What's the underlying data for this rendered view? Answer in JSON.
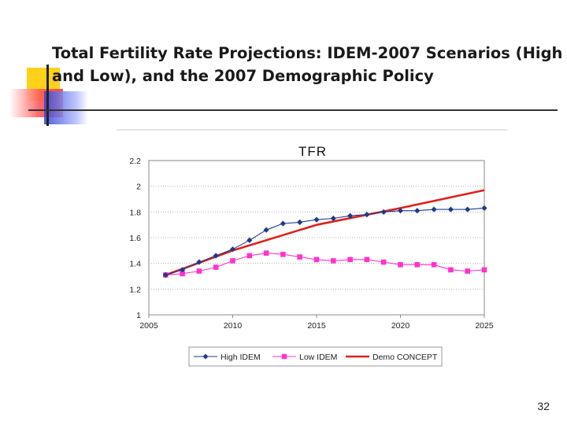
{
  "slide": {
    "title": "Total Fertility Rate Projections: IDEM-2007 Scenarios (High and Low), and the 2007 Demographic Policy",
    "page_number": "32"
  },
  "colors": {
    "high": "#1f3a8a",
    "low": "#ff33cc",
    "demo": "#e0201b",
    "deco_yellow": "#ffd21a",
    "deco_red": "#ff3b3b",
    "deco_blue": "#5560e0"
  },
  "chart_data": {
    "type": "line",
    "title": "TFR",
    "xlabel": "",
    "ylabel": "",
    "xlim": [
      2005,
      2025
    ],
    "ylim": [
      1,
      2.2
    ],
    "x_ticks": [
      "2005",
      "2010",
      "2015",
      "2020",
      "2025"
    ],
    "y_ticks": [
      "1",
      "1.2",
      "1.4",
      "1.6",
      "1.8",
      "2",
      "2.2"
    ],
    "grid": true,
    "legend_position": "bottom",
    "series": [
      {
        "name": "High IDEM",
        "marker": "diamond",
        "x": [
          2006,
          2007,
          2008,
          2009,
          2010,
          2011,
          2012,
          2013,
          2014,
          2015,
          2016,
          2017,
          2018,
          2019,
          2020,
          2021,
          2022,
          2023,
          2024,
          2025
        ],
        "values": [
          1.31,
          1.35,
          1.41,
          1.46,
          1.51,
          1.58,
          1.66,
          1.71,
          1.72,
          1.74,
          1.75,
          1.77,
          1.78,
          1.8,
          1.81,
          1.81,
          1.82,
          1.82,
          1.82,
          1.83
        ]
      },
      {
        "name": "Low IDEM",
        "marker": "square",
        "x": [
          2006,
          2007,
          2008,
          2009,
          2010,
          2011,
          2012,
          2013,
          2014,
          2015,
          2016,
          2017,
          2018,
          2019,
          2020,
          2021,
          2022,
          2023,
          2024,
          2025
        ],
        "values": [
          1.31,
          1.32,
          1.34,
          1.37,
          1.42,
          1.46,
          1.48,
          1.47,
          1.45,
          1.43,
          1.42,
          1.43,
          1.43,
          1.41,
          1.39,
          1.39,
          1.39,
          1.35,
          1.34,
          1.35
        ]
      },
      {
        "name": "Demo CONCEPT",
        "marker": "none",
        "x": [
          2006,
          2010,
          2015,
          2020,
          2025
        ],
        "values": [
          1.31,
          1.5,
          1.7,
          1.83,
          1.97
        ]
      }
    ]
  }
}
